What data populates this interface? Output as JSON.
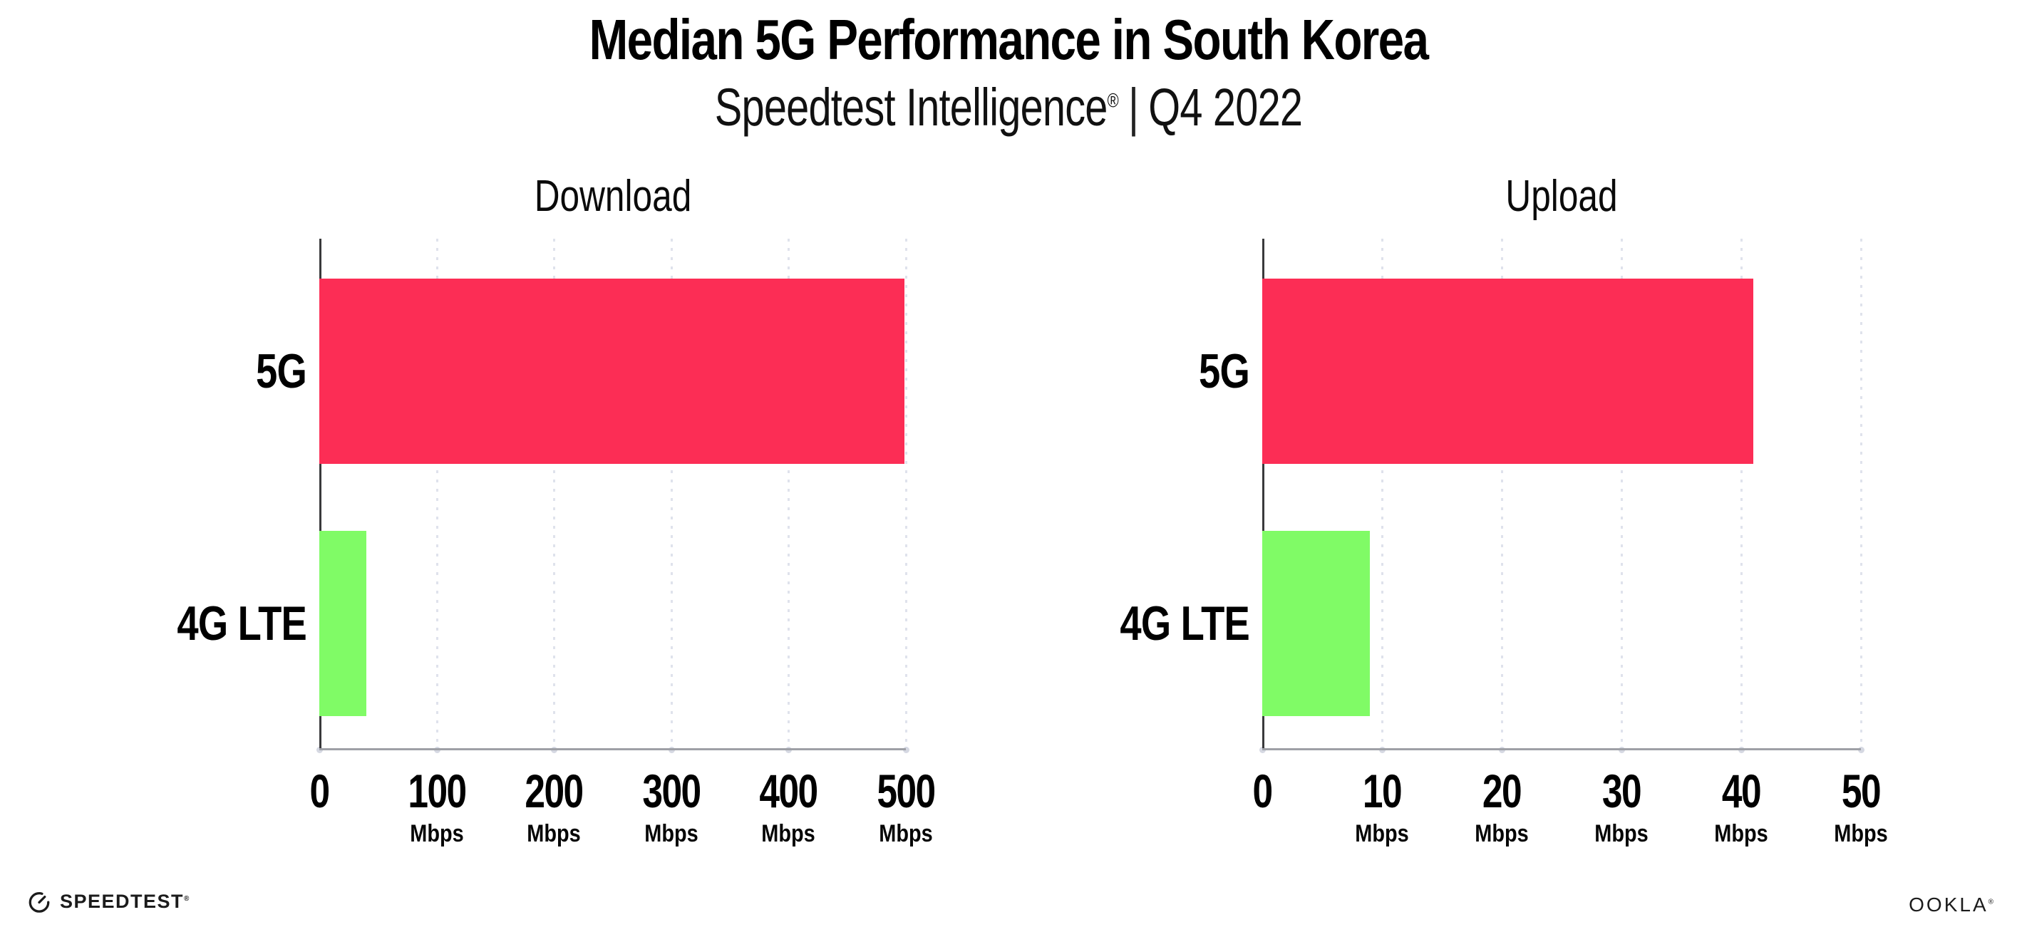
{
  "header": {
    "title": "Median 5G Performance in South Korea",
    "subtitle": {
      "brand": "Speedtest Intelligence",
      "registered_mark": "®",
      "divider": "|",
      "period": "Q4 2022"
    }
  },
  "chart_data": [
    {
      "type": "bar",
      "orientation": "horizontal",
      "title": "Download",
      "categories": [
        "5G",
        "4G LTE"
      ],
      "values": [
        499,
        40
      ],
      "unit": "Mbps",
      "xlim": [
        0,
        500
      ],
      "xticks": [
        0,
        100,
        200,
        300,
        400,
        500
      ],
      "xtick_unit_label": "Mbps",
      "grid": "vertical-dotted",
      "legend_position": "none",
      "bar_colors": [
        "#FC2D55",
        "#80FB66"
      ]
    },
    {
      "type": "bar",
      "orientation": "horizontal",
      "title": "Upload",
      "categories": [
        "5G",
        "4G LTE"
      ],
      "values": [
        41,
        9
      ],
      "unit": "Mbps",
      "xlim": [
        0,
        50
      ],
      "xticks": [
        0,
        10,
        20,
        30,
        40,
        50
      ],
      "xtick_unit_label": "Mbps",
      "grid": "vertical-dotted",
      "legend_position": "none",
      "bar_colors": [
        "#FC2D55",
        "#80FB66"
      ]
    }
  ],
  "footer": {
    "speedtest_wordmark": "SPEEDTEST",
    "speedtest_registered_mark": "®",
    "ookla_wordmark": "OOKLA",
    "ookla_registered_mark": "®"
  },
  "colors": {
    "bar_5g": "#FC2D55",
    "bar_4g_lte": "#80FB66",
    "gridline": "#DFE2EC",
    "axis_line": "#9EA0A6",
    "y_spine": "#3A3A3C",
    "text": "#000000",
    "background": "#FFFFFF"
  }
}
